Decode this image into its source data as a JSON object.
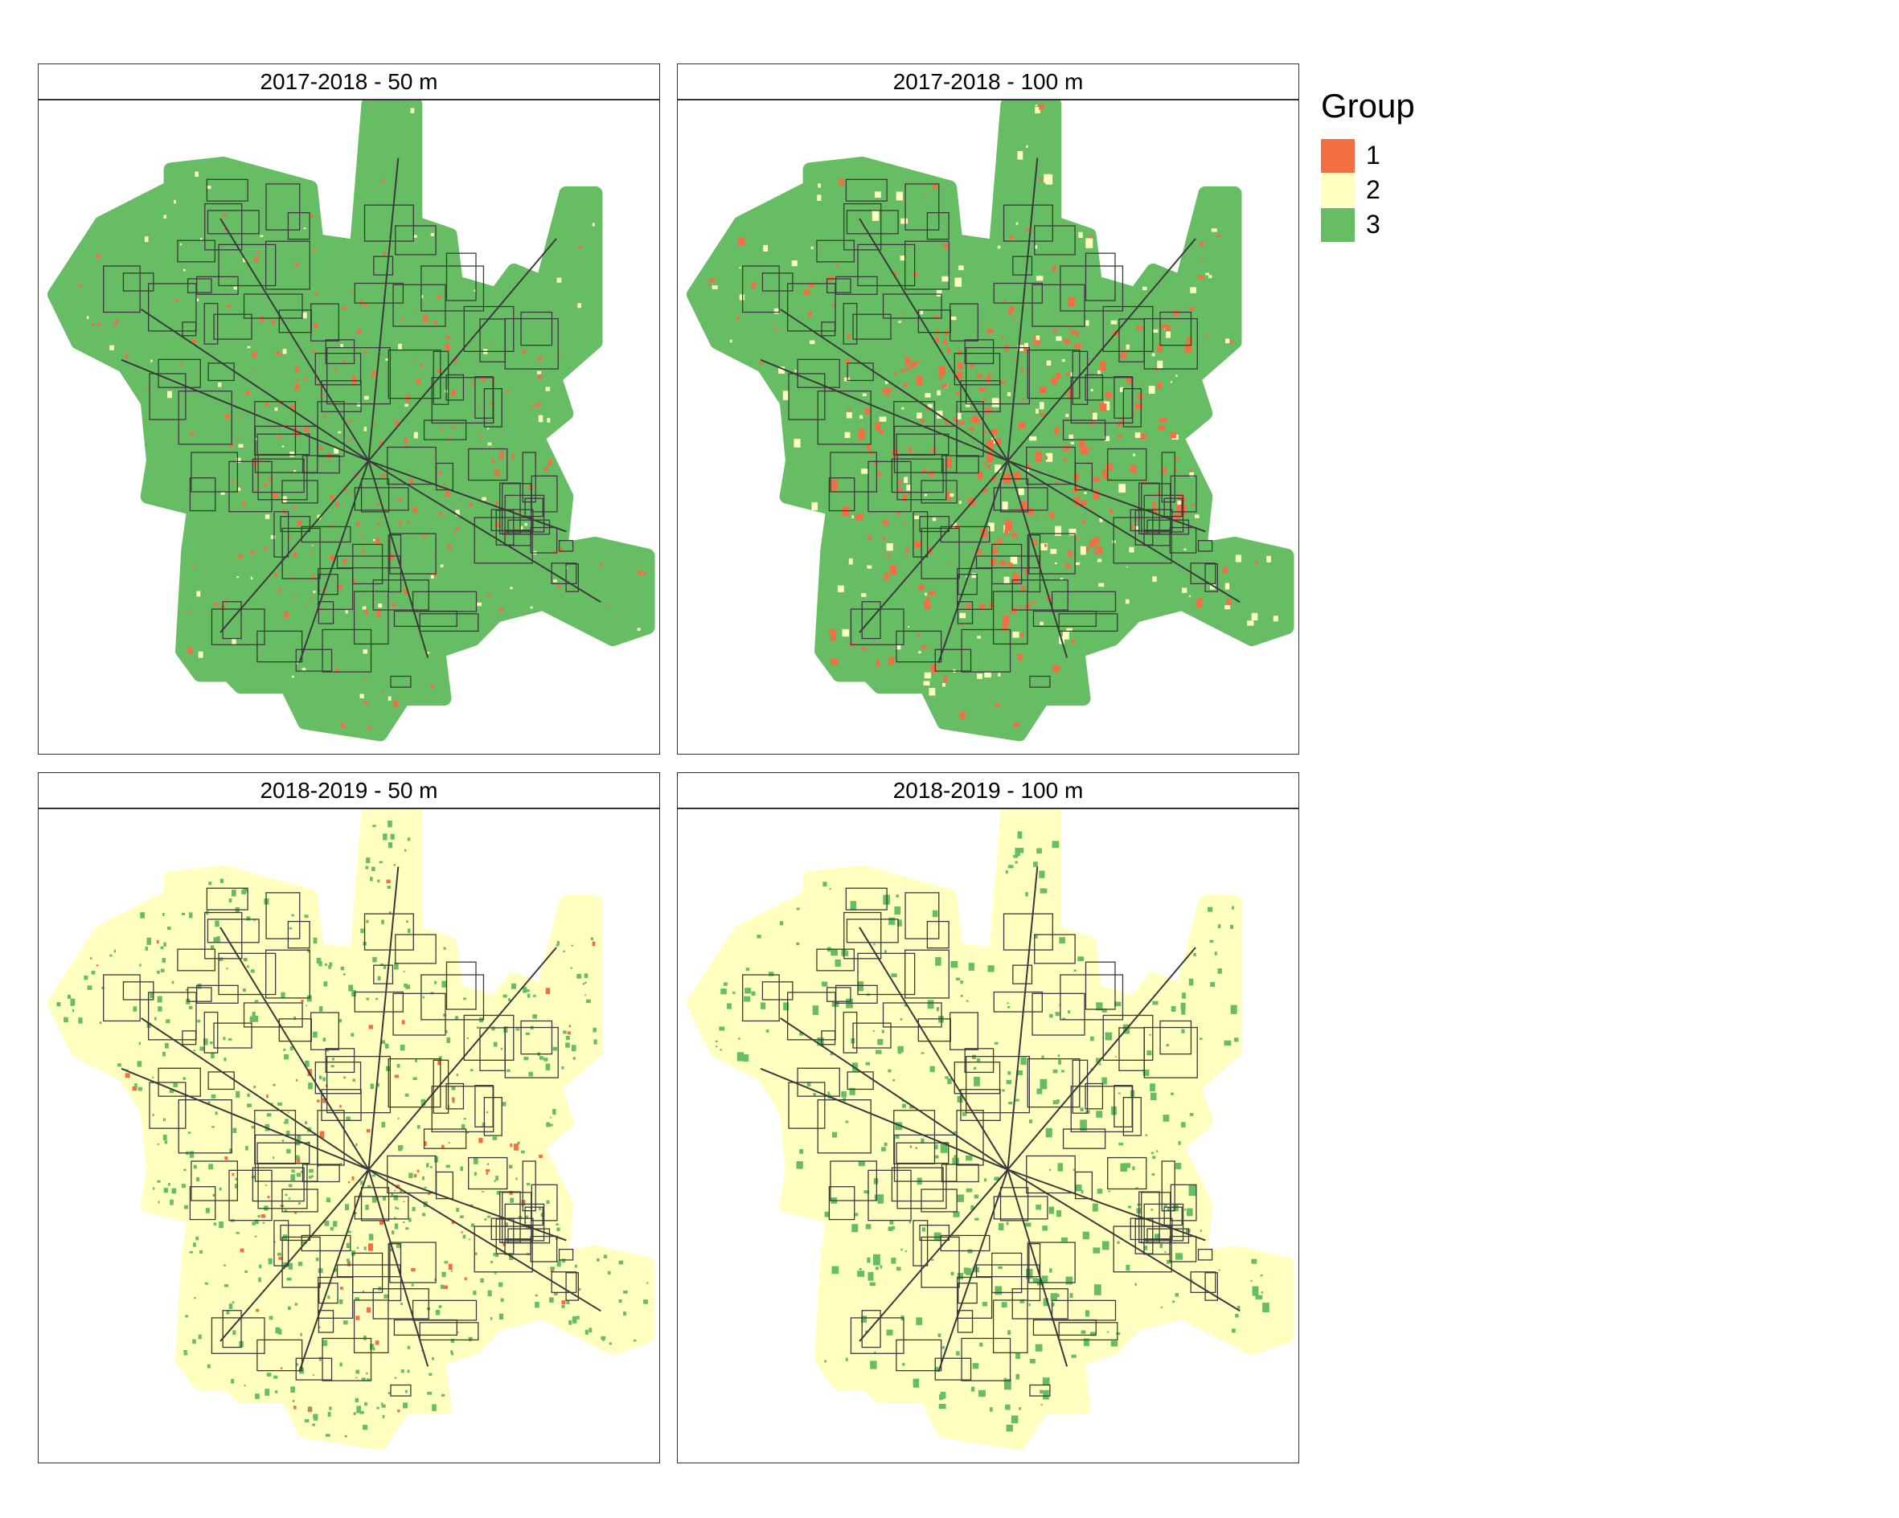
{
  "legend": {
    "title": "Group",
    "items": [
      {
        "label": "1",
        "color": "#f46d43"
      },
      {
        "label": "2",
        "color": "#ffffbf"
      },
      {
        "label": "3",
        "color": "#66bd63"
      }
    ]
  },
  "panels": [
    {
      "title": "2017-2018 - 50 m",
      "base_group": "3",
      "spot_groups": [
        "1",
        "2"
      ],
      "spot_share": {
        "1": 0.45,
        "2": 0.12
      }
    },
    {
      "title": "2017-2018 - 100 m",
      "base_group": "3",
      "spot_groups": [
        "1",
        "2"
      ],
      "spot_share": {
        "1": 0.7,
        "2": 0.2
      }
    },
    {
      "title": "2018-2019 - 50 m",
      "base_group": "2",
      "spot_groups": [
        "3",
        "1"
      ],
      "spot_share": {
        "3": 0.6,
        "1": 0.15
      }
    },
    {
      "title": "2018-2019 - 100 m",
      "base_group": "2",
      "spot_groups": [
        "3"
      ],
      "spot_share": {
        "3": 0.45
      }
    }
  ],
  "colors": {
    "boundary": "#3a3a3a",
    "panel_border": "#333333"
  }
}
